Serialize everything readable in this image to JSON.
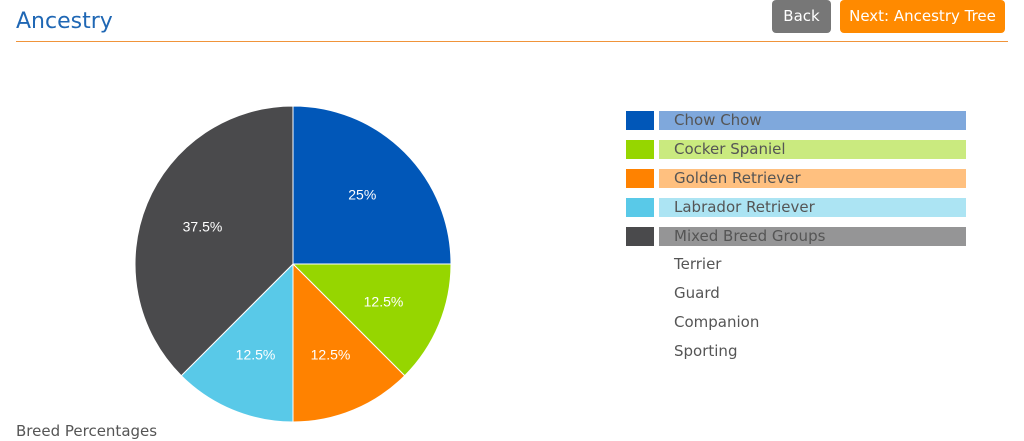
{
  "header": {
    "title": "Ancestry",
    "back_label": "Back",
    "next_label": "Next: Ancestry Tree"
  },
  "colors": {
    "accent": "#ff8a00",
    "title": "#1f67b4",
    "back_button": "#777777"
  },
  "chart_data": {
    "type": "pie",
    "title": "",
    "slices": [
      {
        "label": "Chow Chow",
        "value": 25,
        "display": "25%",
        "color": "#0157b8"
      },
      {
        "label": "Cocker Spaniel",
        "value": 12.5,
        "display": "12.5%",
        "color": "#96d600"
      },
      {
        "label": "Golden Retriever",
        "value": 12.5,
        "display": "12.5%",
        "color": "#ff8200"
      },
      {
        "label": "Labrador Retriever",
        "value": 12.5,
        "display": "12.5%",
        "color": "#59c9e8"
      },
      {
        "label": "Mixed Breed Groups",
        "value": 37.5,
        "display": "37.5%",
        "color": "#4a4a4c"
      }
    ],
    "legend_placement": "right"
  },
  "legend": {
    "items": [
      {
        "label": "Chow Chow",
        "color": "#0157b8",
        "bar_color": "#7fa8dc"
      },
      {
        "label": "Cocker Spaniel",
        "color": "#96d600",
        "bar_color": "#caea7f"
      },
      {
        "label": "Golden Retriever",
        "color": "#ff8200",
        "bar_color": "#ffc07f"
      },
      {
        "label": "Labrador Retriever",
        "color": "#59c9e8",
        "bar_color": "#ace4f3"
      },
      {
        "label": "Mixed Breed Groups",
        "color": "#4a4a4c",
        "bar_color": "#959596"
      }
    ],
    "subgroups": [
      "Terrier",
      "Guard",
      "Companion",
      "Sporting"
    ]
  },
  "footer": {
    "section_label": "Breed Percentages"
  }
}
